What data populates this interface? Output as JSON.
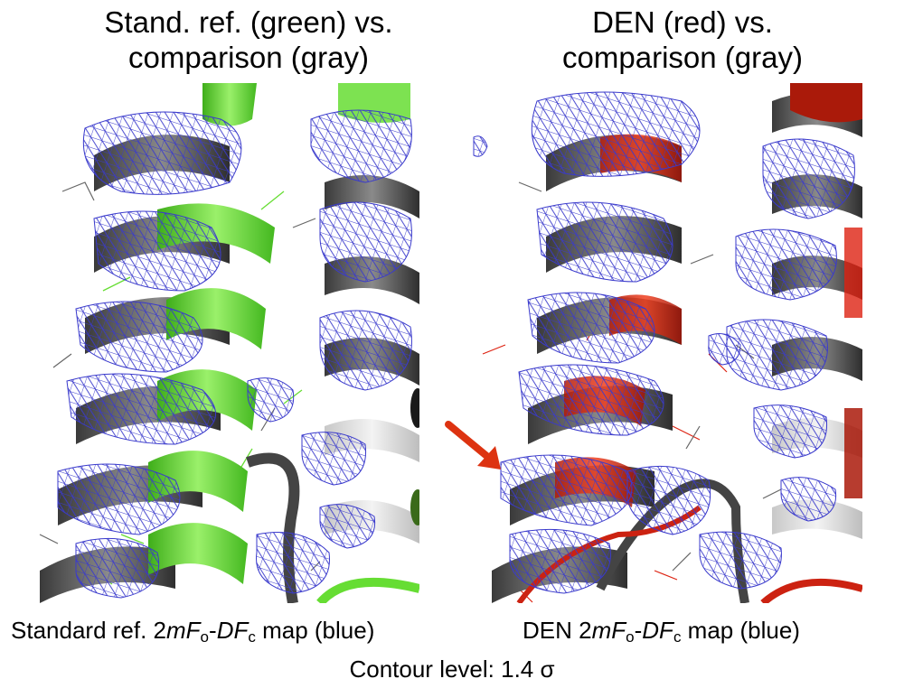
{
  "left_panel": {
    "title_line1": "Stand. ref. (green) vs.",
    "title_line2": "comparison (gray)",
    "caption_prefix": "Standard ref. 2",
    "caption_m": "mF",
    "caption_o": "o",
    "caption_dash": "-",
    "caption_DF": "DF",
    "caption_c": "c",
    "caption_suffix": " map (blue)"
  },
  "right_panel": {
    "title_line1": "DEN (red) vs.",
    "title_line2": "comparison (gray)",
    "caption_prefix": "DEN 2",
    "caption_m": "mF",
    "caption_o": "o",
    "caption_dash": "-",
    "caption_DF": "DF",
    "caption_c": "c",
    "caption_suffix": " map (blue)"
  },
  "footer": {
    "contour_label": "Contour level: 1.4 σ"
  },
  "colors": {
    "standard_ref": "#66dd33",
    "den": "#dd2211",
    "comparison": "#555555",
    "density_map": "#3a3acc",
    "arrow": "#dd3311"
  }
}
